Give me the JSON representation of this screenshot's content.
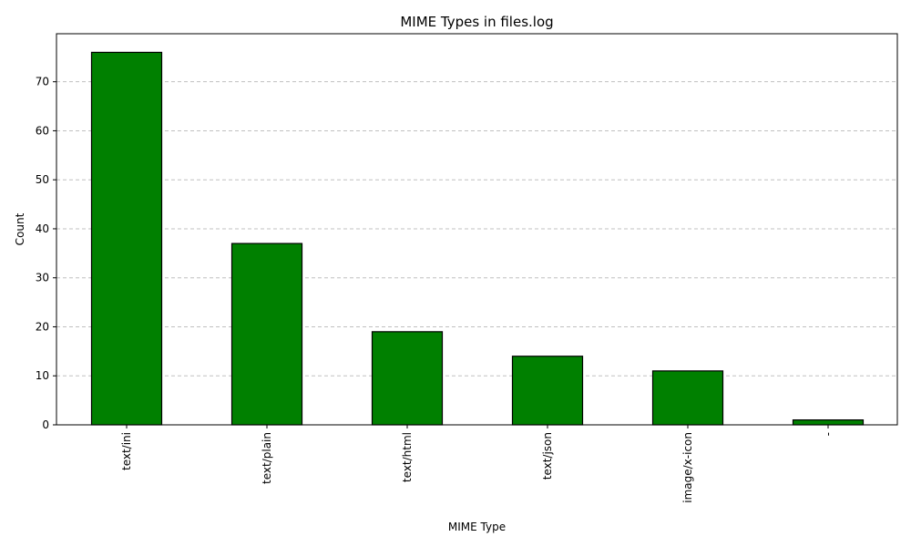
{
  "chart_data": {
    "type": "bar",
    "title": "MIME Types in files.log",
    "xlabel": "MIME Type",
    "ylabel": "Count",
    "categories": [
      "text/ini",
      "text/plain",
      "text/html",
      "text/json",
      "image/x-icon",
      "-"
    ],
    "values": [
      76,
      37,
      19,
      14,
      11,
      1
    ],
    "ylim": [
      0,
      79.8
    ],
    "yticks": [
      0,
      10,
      20,
      30,
      40,
      50,
      60,
      70
    ],
    "grid": "y-dashed",
    "legend": "none",
    "bar_color": "#008000",
    "edge_color": "#000000",
    "grid_color": "#c0c0c0"
  }
}
